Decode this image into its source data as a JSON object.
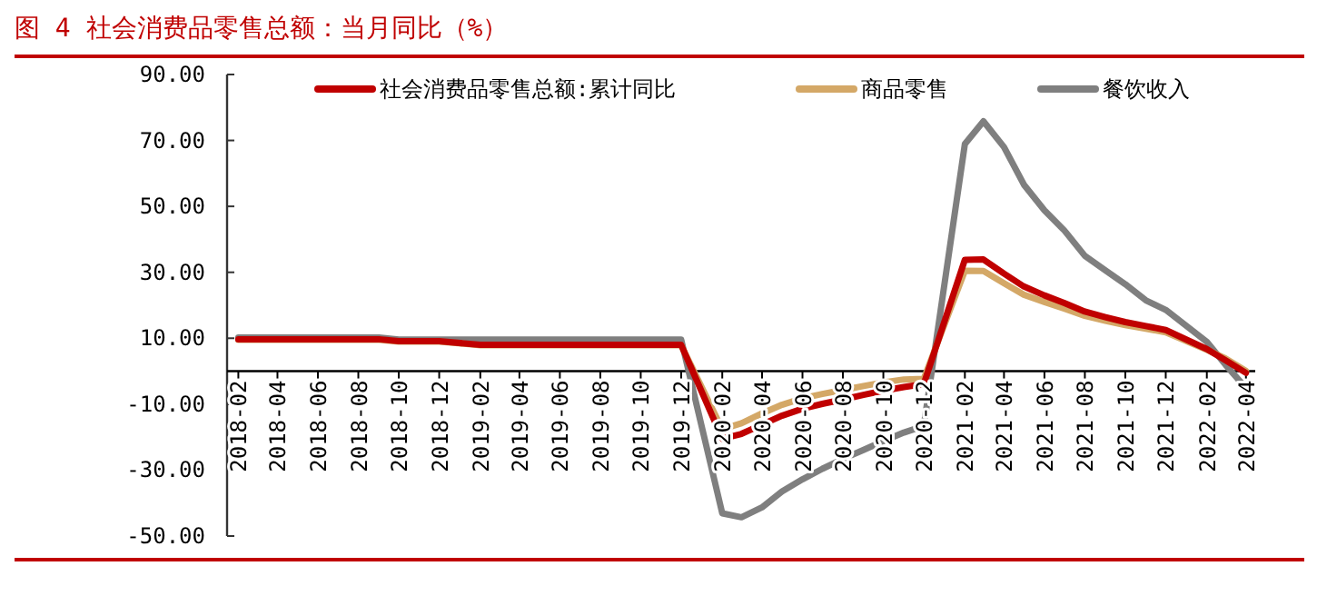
{
  "chart_data": {
    "type": "line",
    "title": "图 4  社会消费品零售总额：当月同比（%）",
    "xlim": [
      "2018-01-15",
      "2022-04-15"
    ],
    "xticks": [
      "2018-02",
      "2018-04",
      "2018-06",
      "2018-08",
      "2018-10",
      "2018-12",
      "2019-02",
      "2019-04",
      "2019-06",
      "2019-08",
      "2019-10",
      "2019-12",
      "2020-02",
      "2020-04",
      "2020-06",
      "2020-08",
      "2020-10",
      "2020-12",
      "2021-02",
      "2021-04",
      "2021-06",
      "2021-08",
      "2021-10",
      "2021-12",
      "2022-02",
      "2022-04"
    ],
    "ylim": [
      -50,
      90
    ],
    "yticks": [
      {
        "value": 90,
        "label": "90.00"
      },
      {
        "value": 70,
        "label": "70.00"
      },
      {
        "value": 50,
        "label": "50.00"
      },
      {
        "value": 30,
        "label": "30.00"
      },
      {
        "value": 10,
        "label": "10.00"
      },
      {
        "value": -10,
        "label": "-10.00"
      },
      {
        "value": -30,
        "label": "-30.00"
      },
      {
        "value": -50,
        "label": "-50.00"
      }
    ],
    "legend": "top",
    "grid": false,
    "marker": "none",
    "line_style": "solid",
    "x": [
      "2018-02",
      "2018-03",
      "2018-04",
      "2018-05",
      "2018-06",
      "2018-07",
      "2018-08",
      "2018-09",
      "2018-10",
      "2018-11",
      "2018-12",
      "2019-02",
      "2019-03",
      "2019-04",
      "2019-05",
      "2019-06",
      "2019-07",
      "2019-08",
      "2019-09",
      "2019-10",
      "2019-11",
      "2019-12",
      "2020-02",
      "2020-03",
      "2020-04",
      "2020-05",
      "2020-06",
      "2020-07",
      "2020-08",
      "2020-09",
      "2020-10",
      "2020-11",
      "2020-12",
      "2021-02",
      "2021-03",
      "2021-04",
      "2021-05",
      "2021-06",
      "2021-07",
      "2021-08",
      "2021-09",
      "2021-10",
      "2021-11",
      "2021-12",
      "2022-02",
      "2022-03",
      "2022-04"
    ],
    "series": [
      {
        "name": "社会消费品零售总额:累计同比",
        "color": "#c00000",
        "values": [
          9.7,
          9.7,
          9.7,
          9.7,
          9.7,
          9.7,
          9.7,
          9.7,
          9.1,
          9.1,
          9.1,
          8.0,
          8.0,
          8.0,
          8.0,
          8.0,
          8.0,
          8.0,
          8.0,
          8.0,
          8.0,
          8.0,
          -20.5,
          -19.0,
          -16.2,
          -13.5,
          -11.4,
          -9.9,
          -8.6,
          -7.2,
          -5.9,
          -4.8,
          -3.9,
          33.8,
          33.9,
          29.6,
          25.7,
          23.0,
          20.7,
          18.1,
          16.4,
          14.9,
          13.7,
          12.5,
          6.7,
          3.3,
          -0.5
        ]
      },
      {
        "name": "商品零售",
        "color": "#d4a867",
        "values": [
          9.5,
          9.5,
          9.5,
          9.5,
          9.5,
          9.5,
          9.5,
          9.5,
          9.0,
          9.0,
          9.0,
          7.9,
          7.9,
          7.9,
          7.9,
          7.9,
          7.9,
          7.9,
          7.9,
          7.9,
          7.9,
          7.9,
          -17.6,
          -15.8,
          -12.8,
          -10.2,
          -8.2,
          -6.9,
          -5.7,
          -4.5,
          -3.4,
          -2.5,
          -2.3,
          30.5,
          30.4,
          26.7,
          23.2,
          21.0,
          19.0,
          16.8,
          15.3,
          14.0,
          12.9,
          11.8,
          6.5,
          3.9,
          0.1
        ]
      },
      {
        "name": "餐饮收入",
        "color": "#7f7f7f",
        "values": [
          10.2,
          10.2,
          10.2,
          10.2,
          10.2,
          10.2,
          10.2,
          10.2,
          9.6,
          9.6,
          9.6,
          9.6,
          9.6,
          9.6,
          9.6,
          9.6,
          9.6,
          9.6,
          9.6,
          9.6,
          9.6,
          9.6,
          -43.1,
          -44.3,
          -41.3,
          -36.5,
          -32.8,
          -29.6,
          -26.6,
          -23.9,
          -21.2,
          -18.6,
          -16.6,
          68.9,
          75.8,
          68.0,
          56.6,
          48.8,
          42.7,
          35.0,
          30.6,
          26.4,
          21.5,
          18.6,
          8.9,
          2.0,
          -5.1
        ]
      }
    ]
  }
}
